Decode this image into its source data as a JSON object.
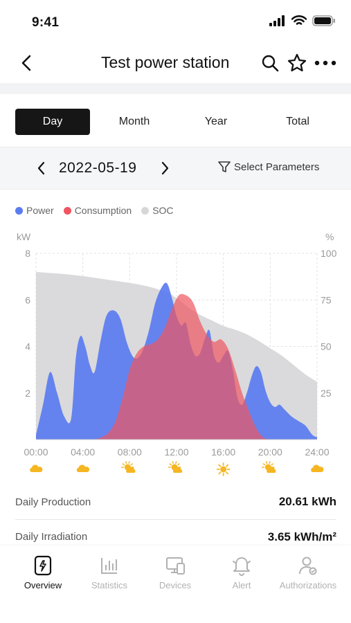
{
  "status_bar": {
    "time": "9:41"
  },
  "header": {
    "title": "Test power station",
    "icons": [
      "back-icon",
      "search-icon",
      "star-icon",
      "more-icon"
    ]
  },
  "period_tabs": [
    {
      "label": "Day",
      "active": true
    },
    {
      "label": "Month",
      "active": false
    },
    {
      "label": "Year",
      "active": false
    },
    {
      "label": "Total",
      "active": false
    }
  ],
  "date_selector": {
    "date": "2022-05-19",
    "select_params_label": "Select Parameters"
  },
  "chart_data": {
    "type": "area",
    "legend_placement": "top-left",
    "y_left_label": "kW",
    "y_right_label": "%",
    "y_left_range": [
      0,
      8
    ],
    "y_right_range": [
      0,
      100
    ],
    "y_left_ticks": [
      "8",
      "6",
      "4",
      "2"
    ],
    "y_right_ticks": [
      "100",
      "75",
      "50",
      "25"
    ],
    "x_range": [
      0,
      24
    ],
    "x_ticks": [
      "00:00",
      "04:00",
      "08:00",
      "12:00",
      "16:00",
      "20:00",
      "24:00"
    ],
    "grid": true,
    "series": [
      {
        "name": "Power",
        "color": "#5b7cf0",
        "axis": "left",
        "x": [
          0,
          0.6,
          1.2,
          1.8,
          2.4,
          3.0,
          3.4,
          3.8,
          4.2,
          4.6,
          5.0,
          5.5,
          6.0,
          6.6,
          7.2,
          7.8,
          8.4,
          9.0,
          9.6,
          10.2,
          10.8,
          11.2,
          11.6,
          12.0,
          12.4,
          12.8,
          13.2,
          13.6,
          14.0,
          14.4,
          14.8,
          15.2,
          15.6,
          16.0,
          16.4,
          16.8,
          17.2,
          17.6,
          18.0,
          18.4,
          18.8,
          19.2,
          19.6,
          20.0,
          20.4,
          20.8,
          21.2,
          21.8,
          22.4,
          23.0,
          23.6,
          24.0
        ],
        "y": [
          0.2,
          1.5,
          2.9,
          2.0,
          1.0,
          0.9,
          3.5,
          4.45,
          4.0,
          3.2,
          2.9,
          4.2,
          5.3,
          5.55,
          5.2,
          4.1,
          3.5,
          3.7,
          4.6,
          5.9,
          6.6,
          6.7,
          6.1,
          5.3,
          4.9,
          5.0,
          4.1,
          3.6,
          3.7,
          4.3,
          4.7,
          3.6,
          3.3,
          3.6,
          3.8,
          3.0,
          1.8,
          1.5,
          2.0,
          2.7,
          3.15,
          2.9,
          2.1,
          1.6,
          1.4,
          1.5,
          1.3,
          1.0,
          0.8,
          0.6,
          0.2,
          0.1
        ]
      },
      {
        "name": "Consumption",
        "color": "#f05560",
        "axis": "left",
        "opacity": 0.7,
        "x": [
          5.0,
          5.6,
          6.2,
          6.8,
          7.4,
          8.0,
          8.6,
          9.2,
          9.8,
          10.4,
          11.0,
          11.6,
          12.2,
          12.8,
          13.4,
          14.0,
          14.6,
          15.2,
          15.8,
          16.4,
          17.0,
          17.6,
          18.2,
          18.8,
          19.4,
          20.0
        ],
        "y": [
          0,
          0.1,
          0.3,
          0.8,
          1.8,
          3.0,
          3.7,
          4.0,
          4.1,
          4.3,
          4.8,
          5.6,
          6.2,
          6.2,
          5.9,
          5.1,
          4.5,
          4.2,
          4.3,
          3.9,
          3.0,
          2.0,
          1.2,
          0.5,
          0.1,
          0
        ]
      },
      {
        "name": "SOC",
        "color": "#d7d7d9",
        "axis": "right",
        "x": [
          0,
          3,
          6,
          9,
          11,
          12,
          13,
          14,
          15,
          16,
          17,
          18,
          19,
          20,
          21,
          22,
          23,
          24
        ],
        "y": [
          90,
          88.5,
          86,
          83,
          79.5,
          76,
          71,
          67,
          64,
          61,
          59,
          56.5,
          53,
          49,
          45,
          40,
          35,
          31
        ]
      }
    ]
  },
  "weather_icons": [
    "cloudy-icon",
    "cloudy-icon",
    "partly-cloudy-icon",
    "partly-cloudy-icon",
    "sunny-icon",
    "partly-cloudy-icon",
    "cloudy-icon"
  ],
  "summary": [
    {
      "label": "Daily Production",
      "value": "20.61 kWh"
    },
    {
      "label": "Daily Irradiation",
      "value": "3.65 kWh/m²"
    }
  ],
  "bottom_nav": [
    {
      "label": "Overview",
      "icon": "overview-icon",
      "active": true
    },
    {
      "label": "Statistics",
      "icon": "statistics-icon",
      "active": false
    },
    {
      "label": "Devices",
      "icon": "devices-icon",
      "active": false
    },
    {
      "label": "Alert",
      "icon": "alert-icon",
      "active": false
    },
    {
      "label": "Authorizations",
      "icon": "authorizations-icon",
      "active": false
    }
  ]
}
